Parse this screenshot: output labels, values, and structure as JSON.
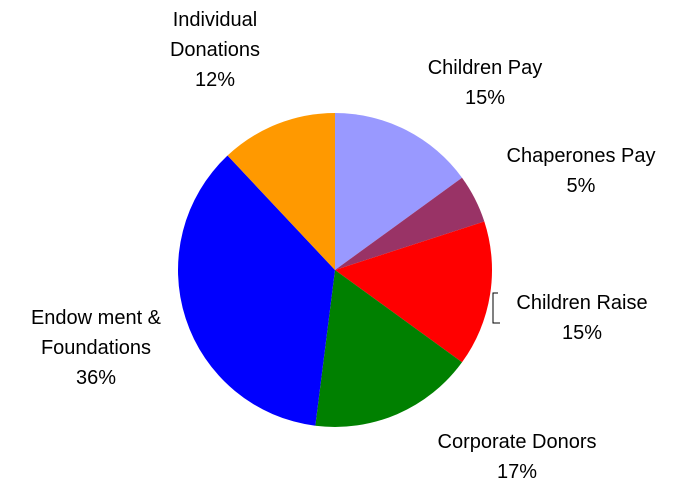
{
  "chart_data": {
    "type": "pie",
    "title": "",
    "slices": [
      {
        "label_lines": [
          "Children Pay"
        ],
        "value": 15,
        "value_label": "15%",
        "color": "#9999ff"
      },
      {
        "label_lines": [
          "Chaperones Pay"
        ],
        "value": 5,
        "value_label": "5%",
        "color": "#993366"
      },
      {
        "label_lines": [
          "Children Raise"
        ],
        "value": 15,
        "value_label": "15%",
        "color": "#ff0000"
      },
      {
        "label_lines": [
          "Corporate Donors"
        ],
        "value": 17,
        "value_label": "17%",
        "color": "#008000"
      },
      {
        "label_lines": [
          "Endow ment &",
          "Foundations"
        ],
        "value": 36,
        "value_label": "36%",
        "color": "#0000ff"
      },
      {
        "label_lines": [
          "Individual",
          "Donations"
        ],
        "value": 12,
        "value_label": "12%",
        "color": "#ff9900"
      }
    ],
    "start_angle": "12 o'clock",
    "direction": "clockwise",
    "legend": "none",
    "data_labels": "outside",
    "leader_lines": "Children Raise"
  }
}
